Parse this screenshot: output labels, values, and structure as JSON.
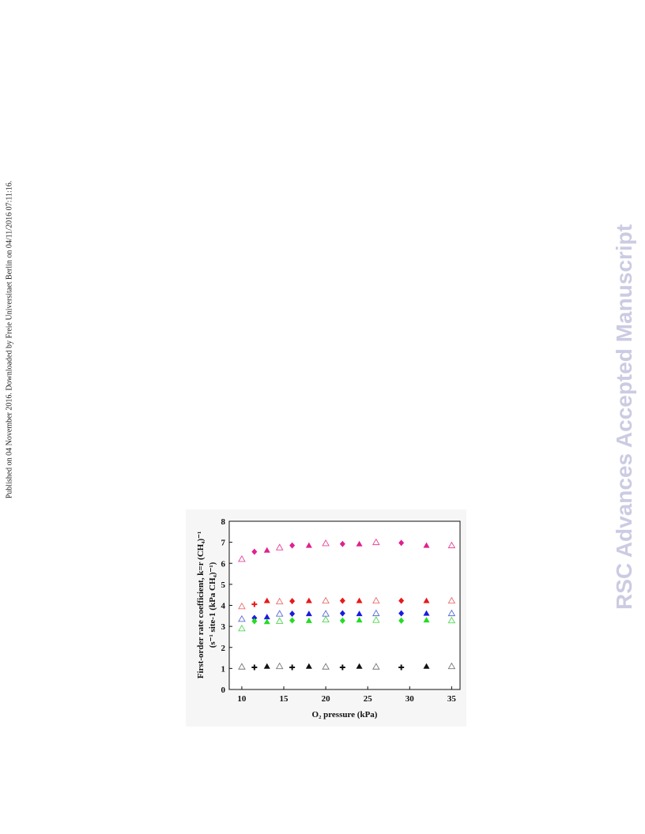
{
  "side_note": "Published on 04 November 2016. Downloaded by Freie Universitaet Berlin on 04/11/2016 07:11:16.",
  "watermark": "RSC Advances Accepted Manuscript",
  "chart_data": {
    "type": "scatter",
    "xlabel": "O₂ pressure (kPa)",
    "ylabel": [
      "First-order rate coefficient, k=r (CH₄)⁻¹",
      "(s⁻¹ site-1 (kPa CH₄)⁻¹)"
    ],
    "xlim": [
      8.5,
      36
    ],
    "ylim": [
      0,
      8
    ],
    "xticks": [
      10,
      15,
      20,
      25,
      30,
      35
    ],
    "yticks": [
      0,
      1,
      2,
      3,
      4,
      5,
      6,
      7,
      8
    ],
    "series": [
      {
        "color": "#e8409a",
        "marker": "triangle-open",
        "x": [
          10,
          14.5,
          20,
          26,
          35
        ],
        "values": [
          6.2,
          6.75,
          6.95,
          7.0,
          6.85
        ]
      },
      {
        "color": "#e0208f",
        "marker": "triangle",
        "x": [
          13,
          18,
          24,
          32
        ],
        "values": [
          6.62,
          6.85,
          6.92,
          6.85
        ]
      },
      {
        "color": "#e0208f",
        "marker": "diamond",
        "x": [
          11.5,
          16,
          22,
          29
        ],
        "values": [
          6.55,
          6.85,
          6.92,
          6.97
        ]
      },
      {
        "color": "#ec6a6a",
        "marker": "triangle-open",
        "x": [
          10,
          14.5,
          20,
          26,
          35
        ],
        "values": [
          3.95,
          4.18,
          4.22,
          4.22,
          4.22
        ]
      },
      {
        "color": "#e8191a",
        "marker": "triangle",
        "x": [
          13,
          18,
          24,
          32
        ],
        "values": [
          4.22,
          4.22,
          4.22,
          4.22
        ]
      },
      {
        "color": "#e8191a",
        "marker": "diamond",
        "x": [
          16,
          22,
          29
        ],
        "values": [
          4.2,
          4.22,
          4.22
        ]
      },
      {
        "color": "#e8191a",
        "marker": "plus",
        "x": [
          11.5
        ],
        "values": [
          4.05
        ]
      },
      {
        "color": "#5a6ad8",
        "marker": "triangle-open",
        "x": [
          10,
          14.5,
          20,
          26,
          35
        ],
        "values": [
          3.35,
          3.6,
          3.6,
          3.62,
          3.62
        ]
      },
      {
        "color": "#1a1ae0",
        "marker": "triangle",
        "x": [
          13,
          18,
          24,
          32
        ],
        "values": [
          3.45,
          3.6,
          3.6,
          3.62
        ]
      },
      {
        "color": "#1a1ae0",
        "marker": "diamond",
        "x": [
          11.5,
          16,
          22,
          29
        ],
        "values": [
          3.4,
          3.6,
          3.62,
          3.62
        ]
      },
      {
        "color": "#50d850",
        "marker": "triangle-open",
        "x": [
          10,
          14.5,
          20,
          26,
          35
        ],
        "values": [
          2.9,
          3.25,
          3.32,
          3.3,
          3.28
        ]
      },
      {
        "color": "#22dd22",
        "marker": "triangle",
        "x": [
          13,
          18,
          24,
          32
        ],
        "values": [
          3.22,
          3.27,
          3.3,
          3.3
        ]
      },
      {
        "color": "#22dd22",
        "marker": "diamond",
        "x": [
          11.5,
          16,
          22,
          29
        ],
        "values": [
          3.25,
          3.28,
          3.27,
          3.27
        ]
      },
      {
        "color": "#777777",
        "marker": "triangle-open",
        "x": [
          10,
          14.5,
          20,
          26,
          35
        ],
        "values": [
          1.08,
          1.1,
          1.08,
          1.08,
          1.1
        ]
      },
      {
        "color": "#111111",
        "marker": "triangle",
        "x": [
          13,
          18,
          24,
          32
        ],
        "values": [
          1.1,
          1.1,
          1.1,
          1.1
        ]
      },
      {
        "color": "#111111",
        "marker": "plus",
        "x": [
          11.5,
          16,
          22,
          29
        ],
        "values": [
          1.05,
          1.05,
          1.05,
          1.05
        ]
      }
    ]
  }
}
